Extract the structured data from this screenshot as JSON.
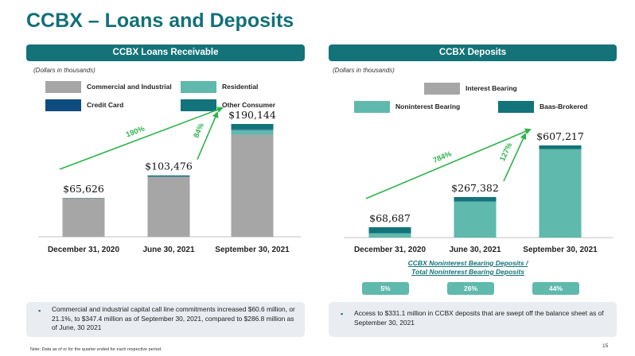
{
  "page": {
    "title": "CCBX – Loans and Deposits",
    "footnote": "Note:  Data as of or for the quarter ended for each respective period.",
    "page_number": "15"
  },
  "loans": {
    "header": "CCBX Loans Receivable",
    "units_note": "(Dollars in thousands)",
    "legend": [
      {
        "label": "Commercial and Industrial",
        "color": "#a6a6a6"
      },
      {
        "label": "Residential",
        "color": "#5fb9ad"
      },
      {
        "label": "Credit Card",
        "color": "#0e4c7f"
      },
      {
        "label": "Other Consumer",
        "color": "#13737a"
      }
    ],
    "bullet": "Commercial and industrial capital call line commitments increased $60.6 million, or 21.1%, to $347.4 million as of September 30, 2021, compared to $286.8 million as of June, 30 2021"
  },
  "deposits": {
    "header": "CCBX Deposits",
    "units_note": "(Dollars in thousands)",
    "legend": [
      {
        "label": "Interest Bearing",
        "color": "#a6a6a6"
      },
      {
        "label": "Noninterest Bearing",
        "color": "#5fb9ad"
      },
      {
        "label": "Baas-Brokered",
        "color": "#13737a"
      }
    ],
    "ratio_title_line1": "CCBX Noninterest Bearing Deposits /",
    "ratio_title_line2": "Total Noninterest Bearing Deposits",
    "ratios": [
      "5%",
      "26%",
      "44%"
    ],
    "bullet": "Access to $331.1 million in CCBX deposits that are swept off the balance sheet as of September 30, 2021"
  },
  "chart_data": [
    {
      "type": "bar",
      "stacked": true,
      "title": "CCBX Loans Receivable",
      "units": "Dollars in thousands",
      "categories": [
        "December 31, 2020",
        "June 30, 2021",
        "September 30, 2021"
      ],
      "totals": [
        65626,
        103476,
        190144
      ],
      "total_labels": [
        "$65,626",
        "$103,476",
        "$190,144"
      ],
      "series": [
        {
          "name": "Commercial and Industrial",
          "color": "#a6a6a6",
          "values": [
            65126,
            100976,
            172144
          ]
        },
        {
          "name": "Residential",
          "color": "#5fb9ad",
          "values": [
            0,
            0,
            8000
          ]
        },
        {
          "name": "Credit Card",
          "color": "#0e4c7f",
          "values": [
            0,
            500,
            1000
          ]
        },
        {
          "name": "Other Consumer",
          "color": "#13737a",
          "values": [
            500,
            2000,
            9000
          ]
        }
      ],
      "ylim": [
        0,
        200000
      ],
      "growth_annotations": [
        {
          "label": "190%",
          "from": 0,
          "to": 2
        },
        {
          "label": "84%",
          "from": 1,
          "to": 2
        }
      ]
    },
    {
      "type": "bar",
      "stacked": true,
      "title": "CCBX Deposits",
      "units": "Dollars in thousands",
      "categories": [
        "December 31, 2020",
        "June 30, 2021",
        "September 30, 2021"
      ],
      "totals": [
        68687,
        267382,
        607217
      ],
      "total_labels": [
        "$68,687",
        "$267,382",
        "$607,217"
      ],
      "series": [
        {
          "name": "Interest Bearing",
          "color": "#a6a6a6",
          "values": [
            0,
            0,
            0
          ]
        },
        {
          "name": "Noninterest Bearing",
          "color": "#5fb9ad",
          "values": [
            28687,
            237382,
            582217
          ]
        },
        {
          "name": "Baas-Brokered",
          "color": "#13737a",
          "values": [
            40000,
            30000,
            25000
          ]
        }
      ],
      "ylim": [
        0,
        640000
      ],
      "growth_annotations": [
        {
          "label": "784%",
          "from": 0,
          "to": 2
        },
        {
          "label": "127%",
          "from": 1,
          "to": 2
        }
      ]
    }
  ]
}
